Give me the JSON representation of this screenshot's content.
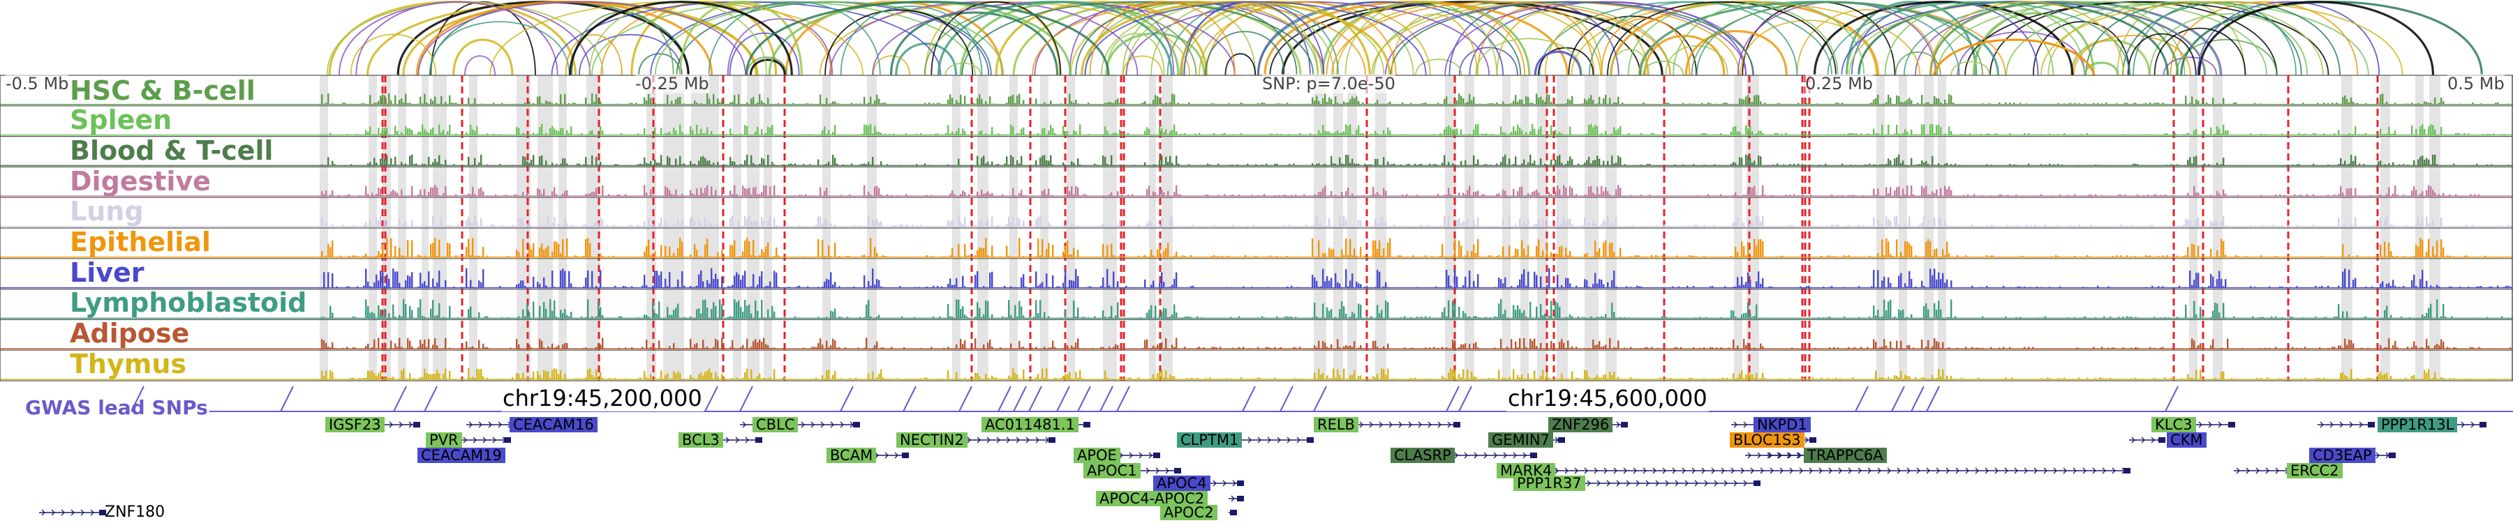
{
  "axis": {
    "left_label": "-0.5 Mb",
    "mid_left_label": "-0.25 Mb",
    "snp_label": "SNP: p=7.0e-50",
    "mid_right_label": "0.25 Mb",
    "right_label": "0.5 Mb"
  },
  "tracks": [
    {
      "name": "HSC & B-cell",
      "color": "#5d9e4c"
    },
    {
      "name": "Spleen",
      "color": "#6cc25a"
    },
    {
      "name": "Blood & T-cell",
      "color": "#4e7d4c"
    },
    {
      "name": "Digestive",
      "color": "#c27b9e"
    },
    {
      "name": "Lung",
      "color": "#d4cfe6"
    },
    {
      "name": "Epithelial",
      "color": "#f0960c"
    },
    {
      "name": "Liver",
      "color": "#4a4acc"
    },
    {
      "name": "Lymphoblastoid",
      "color": "#3f9c82"
    },
    {
      "name": "Adipose",
      "color": "#b85733"
    },
    {
      "name": "Thymus",
      "color": "#d4b51a"
    }
  ],
  "gwas": {
    "label": "GWAS lead SNPs",
    "color": "#6a5acd"
  },
  "coordinates": {
    "left": "chr19:45,200,000",
    "right": "chr19:45,600,000"
  },
  "genes": [
    {
      "name": "IGSF23",
      "color": "#7cc45c"
    },
    {
      "name": "PVR",
      "color": "#7cc45c"
    },
    {
      "name": "CEACAM16",
      "color": "#4a4acc"
    },
    {
      "name": "CEACAM19",
      "color": "#4a4acc"
    },
    {
      "name": "BCL3",
      "color": "#7cc45c"
    },
    {
      "name": "CBLC",
      "color": "#7cc45c"
    },
    {
      "name": "BCAM",
      "color": "#7cc45c"
    },
    {
      "name": "NECTIN2",
      "color": "#7cc45c"
    },
    {
      "name": "AC011481.1",
      "color": "#7cc45c"
    },
    {
      "name": "APOE",
      "color": "#7cc45c"
    },
    {
      "name": "APOC1",
      "color": "#7cc45c"
    },
    {
      "name": "APOC4",
      "color": "#4a4acc"
    },
    {
      "name": "APOC4-APOC2",
      "color": "#7cc45c"
    },
    {
      "name": "APOC2",
      "color": "#7cc45c"
    },
    {
      "name": "CLPTM1",
      "color": "#3f9c82"
    },
    {
      "name": "RELB",
      "color": "#7cc45c"
    },
    {
      "name": "CLASRP",
      "color": "#4e7d4c"
    },
    {
      "name": "ZNF296",
      "color": "#4e7d4c"
    },
    {
      "name": "GEMIN7",
      "color": "#4e7d4c"
    },
    {
      "name": "MARK4",
      "color": "#7cc45c"
    },
    {
      "name": "PPP1R37",
      "color": "#7cc45c"
    },
    {
      "name": "NKPD1",
      "color": "#4a4acc"
    },
    {
      "name": "BLOC1S3",
      "color": "#f0960c"
    },
    {
      "name": "TRAPPC6A",
      "color": "#4e7d4c"
    },
    {
      "name": "KLC3",
      "color": "#7cc45c"
    },
    {
      "name": "CKM",
      "color": "#4a4acc"
    },
    {
      "name": "CD3EAP",
      "color": "#4a4acc"
    },
    {
      "name": "PPP1R13L",
      "color": "#3f9c82"
    },
    {
      "name": "ERCC2",
      "color": "#7cc45c"
    },
    {
      "name": "ZNF180",
      "color": ""
    }
  ]
}
